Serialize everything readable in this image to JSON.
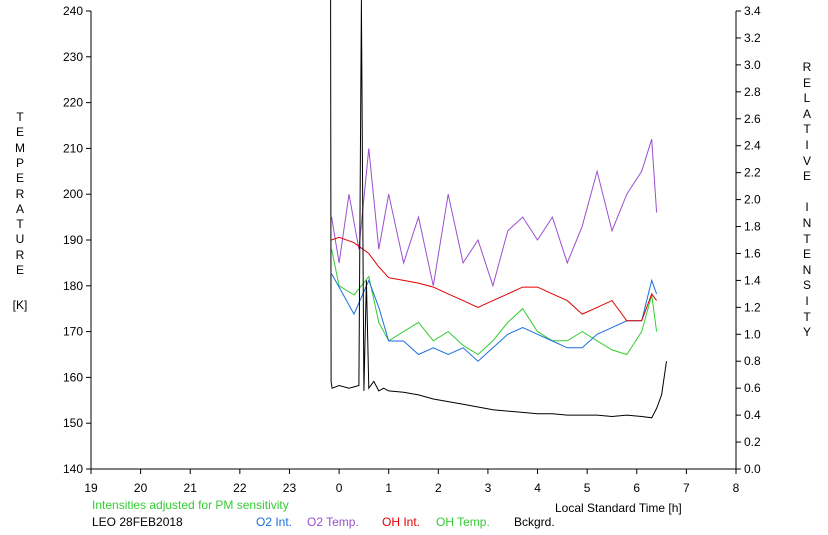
{
  "chart_data": {
    "type": "line",
    "title": "",
    "ylabel_left": "TEMPERATURE",
    "ylabel_left_unit": "[K]",
    "ylabel_right": "RELATIVE INTENSITY",
    "xlabel": "Local Standard Time [h]",
    "x_ticks": [
      "19",
      "20",
      "21",
      "22",
      "23",
      "0",
      "1",
      "2",
      "3",
      "4",
      "5",
      "6",
      "7",
      "8"
    ],
    "x_range_hours": [
      19,
      32
    ],
    "y_left_ticks": [
      "140",
      "150",
      "160",
      "170",
      "180",
      "190",
      "200",
      "210",
      "220",
      "230",
      "240"
    ],
    "y_left_range": [
      140,
      240
    ],
    "y_right_ticks": [
      "0.0",
      "0.2",
      "0.4",
      "0.6",
      "0.8",
      "1.0",
      "1.2",
      "1.4",
      "1.6",
      "1.8",
      "2.0",
      "2.2",
      "2.4",
      "2.6",
      "2.8",
      "3.0",
      "3.2",
      "3.4"
    ],
    "y_right_range": [
      0.0,
      3.4
    ],
    "grid": false,
    "note": "Intensities adjusted for PM sensitivity",
    "site_label": "LEO 28FEB2018",
    "legend_position": "bottom",
    "series": [
      {
        "name": "O2 Int.",
        "color": "#1a6fe0",
        "axis": "right",
        "x": [
          23.85,
          24.0,
          24.3,
          24.6,
          24.8,
          25.0,
          25.3,
          25.6,
          25.9,
          26.2,
          26.5,
          26.8,
          27.1,
          27.4,
          27.7,
          28.0,
          28.3,
          28.6,
          28.9,
          29.2,
          29.5,
          29.8,
          30.1,
          30.3,
          30.4
        ],
        "y": [
          1.45,
          1.35,
          1.15,
          1.4,
          1.2,
          0.95,
          0.95,
          0.85,
          0.9,
          0.85,
          0.9,
          0.8,
          0.9,
          1.0,
          1.05,
          1.0,
          0.95,
          0.9,
          0.9,
          1.0,
          1.05,
          1.1,
          1.1,
          1.4,
          1.3
        ]
      },
      {
        "name": "O2 Temp.",
        "color": "#9a4fd0",
        "axis": "left",
        "x": [
          23.85,
          24.0,
          24.2,
          24.4,
          24.6,
          24.8,
          25.0,
          25.3,
          25.6,
          25.9,
          26.2,
          26.5,
          26.8,
          27.1,
          27.4,
          27.7,
          28.0,
          28.3,
          28.6,
          28.9,
          29.2,
          29.5,
          29.8,
          30.1,
          30.3,
          30.4
        ],
        "y": [
          195,
          185,
          200,
          188,
          210,
          188,
          200,
          185,
          195,
          180,
          200,
          185,
          190,
          180,
          192,
          195,
          190,
          195,
          185,
          193,
          205,
          192,
          200,
          205,
          212,
          196
        ]
      },
      {
        "name": "OH Int.",
        "color": "#e00000",
        "axis": "right",
        "x": [
          23.85,
          24.0,
          24.3,
          24.6,
          24.8,
          25.0,
          25.3,
          25.6,
          25.9,
          26.2,
          26.5,
          26.8,
          27.1,
          27.4,
          27.7,
          28.0,
          28.3,
          28.6,
          28.9,
          29.2,
          29.5,
          29.8,
          30.1,
          30.3,
          30.4
        ],
        "y": [
          1.7,
          1.72,
          1.68,
          1.6,
          1.5,
          1.42,
          1.4,
          1.38,
          1.35,
          1.3,
          1.25,
          1.2,
          1.25,
          1.3,
          1.35,
          1.35,
          1.3,
          1.25,
          1.15,
          1.2,
          1.25,
          1.1,
          1.1,
          1.3,
          1.25
        ]
      },
      {
        "name": "OH Temp.",
        "color": "#33cc33",
        "axis": "left",
        "x": [
          23.85,
          24.0,
          24.3,
          24.6,
          24.8,
          25.0,
          25.3,
          25.6,
          25.9,
          26.2,
          26.5,
          26.8,
          27.1,
          27.4,
          27.7,
          28.0,
          28.3,
          28.6,
          28.9,
          29.2,
          29.5,
          29.8,
          30.1,
          30.3,
          30.4
        ],
        "y": [
          188,
          180,
          178,
          182,
          172,
          168,
          170,
          172,
          168,
          170,
          167,
          165,
          168,
          172,
          175,
          170,
          168,
          168,
          170,
          168,
          166,
          165,
          170,
          178,
          170
        ]
      },
      {
        "name": "Bckgrd.",
        "color": "#000000",
        "axis": "right",
        "x": [
          23.83,
          23.84,
          23.86,
          24.0,
          24.2,
          24.4,
          24.45,
          24.5,
          24.55,
          24.6,
          24.7,
          24.8,
          24.9,
          25.0,
          25.3,
          25.6,
          25.9,
          26.2,
          26.5,
          26.8,
          27.1,
          27.4,
          27.7,
          28.0,
          28.3,
          28.6,
          28.9,
          29.2,
          29.5,
          29.8,
          30.1,
          30.3,
          30.4,
          30.5,
          30.6
        ],
        "y": [
          3.5,
          0.65,
          0.6,
          0.62,
          0.6,
          0.62,
          3.5,
          0.58,
          1.4,
          0.6,
          0.65,
          0.58,
          0.6,
          0.58,
          0.57,
          0.55,
          0.52,
          0.5,
          0.48,
          0.46,
          0.44,
          0.43,
          0.42,
          0.41,
          0.41,
          0.4,
          0.4,
          0.4,
          0.39,
          0.4,
          0.39,
          0.38,
          0.45,
          0.55,
          0.8
        ]
      }
    ]
  }
}
